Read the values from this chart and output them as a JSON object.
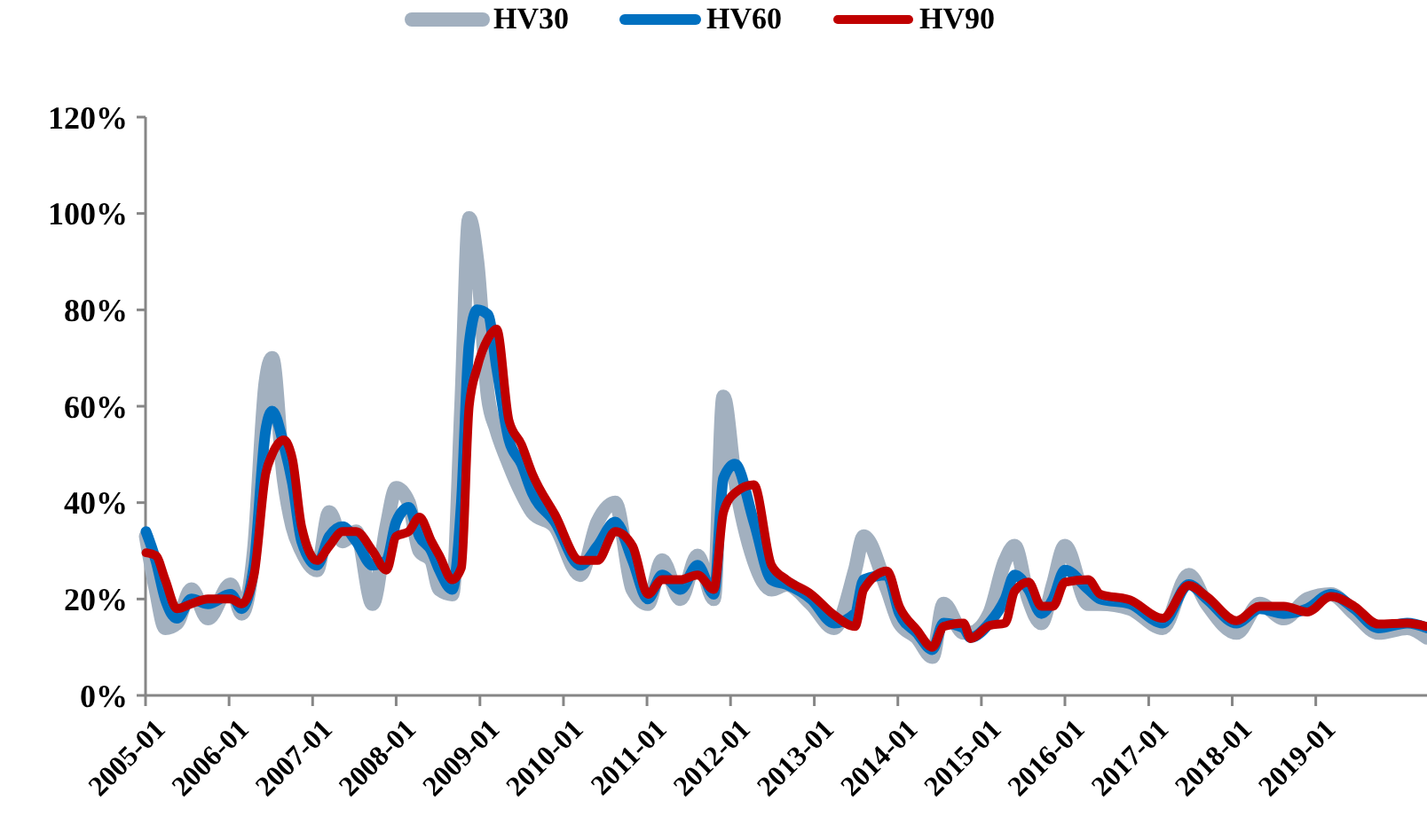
{
  "chart_data": {
    "type": "line",
    "x": [
      "2005-01-03",
      "2005-02-15",
      "2005-03-28",
      "2005-05-18",
      "2005-07-20",
      "2005-10-01",
      "2006-01-08",
      "2006-02-25",
      "2006-04-20",
      "2006-06-10",
      "2006-07-08",
      "2006-08-28",
      "2006-10-05",
      "2006-11-14",
      "2007-01-20",
      "2007-03-15",
      "2007-05-12",
      "2007-07-10",
      "2007-09-20",
      "2007-11-20",
      "2008-01-01",
      "2008-02-25",
      "2008-04-12",
      "2008-06-03",
      "2008-07-08",
      "2008-09-02",
      "2008-10-12",
      "2008-11-15",
      "2008-12-20",
      "2009-02-05",
      "2009-03-15",
      "2009-05-08",
      "2009-07-02",
      "2009-08-18",
      "2009-11-25",
      "2010-03-15",
      "2010-05-30",
      "2010-08-15",
      "2010-10-30",
      "2011-01-05",
      "2011-03-08",
      "2011-05-27",
      "2011-08-10",
      "2011-10-20",
      "2011-12-01",
      "2012-01-20",
      "2012-04-12",
      "2012-06-28",
      "2012-09-02",
      "2012-12-18",
      "2013-03-28",
      "2013-06-28",
      "2013-08-05",
      "2013-11-15",
      "2014-01-08",
      "2014-03-25",
      "2014-06-01",
      "2014-07-20",
      "2014-10-15",
      "2014-11-15",
      "2015-02-05",
      "2015-04-15",
      "2015-05-26",
      "2015-07-26",
      "2015-09-20",
      "2015-11-10",
      "2016-01-01",
      "2016-04-12",
      "2016-06-03",
      "2016-10-12",
      "2017-03-03",
      "2017-06-25",
      "2017-09-12",
      "2018-01-20",
      "2018-05-01",
      "2018-08-15",
      "2018-11-25",
      "2019-03-08",
      "2019-06-18",
      "2019-10-01",
      "2020-02-05",
      "2020-05-01"
    ],
    "series": [
      {
        "name": "HV30",
        "color": "#a2b0bf",
        "values": [
          33,
          22,
          14,
          15,
          22,
          16,
          23,
          17,
          30,
          65,
          70,
          45,
          35,
          30,
          26,
          38,
          32,
          34,
          19,
          35,
          43,
          40,
          30,
          28,
          22,
          21,
          60,
          99,
          90,
          62,
          55,
          48,
          42,
          38,
          35,
          25,
          36,
          40,
          22,
          19,
          28,
          20,
          29,
          20,
          62,
          45,
          28,
          22,
          23,
          19,
          14,
          26,
          33,
          22,
          15,
          12,
          8,
          19,
          13,
          13,
          17,
          28,
          31,
          20,
          15,
          23,
          31,
          19,
          19,
          18,
          14,
          25,
          19,
          13,
          19,
          16,
          20,
          21,
          17,
          13,
          14,
          12
        ]
      },
      {
        "name": "HV60",
        "color": "#0070c0",
        "values": [
          34,
          28,
          20,
          16,
          20,
          19,
          21,
          18,
          27,
          55,
          59,
          52,
          44,
          32,
          27,
          33,
          35,
          32,
          27,
          28,
          36,
          39,
          33,
          30,
          26,
          22,
          40,
          73,
          80,
          79,
          68,
          53,
          48,
          42,
          36,
          27,
          31,
          36,
          28,
          20,
          25,
          22,
          27,
          21,
          45,
          48,
          36,
          24,
          23,
          20,
          15,
          17,
          24,
          25,
          17,
          13,
          9.5,
          15,
          14,
          12,
          15,
          20,
          25,
          22,
          17,
          20,
          26,
          22,
          20,
          19,
          15,
          23,
          20,
          15,
          18,
          17,
          18,
          21,
          18,
          14,
          15,
          14
        ]
      },
      {
        "name": "HV90",
        "color": "#c00000",
        "values": [
          29.6,
          29,
          24,
          18,
          19,
          20,
          20,
          19,
          25,
          46,
          50,
          53,
          49,
          35,
          28,
          31,
          34,
          34,
          30,
          26,
          33,
          34,
          37,
          32,
          29,
          24,
          26.5,
          60,
          68,
          74,
          76,
          57,
          52,
          46,
          37.5,
          28,
          28,
          34,
          31,
          21,
          24,
          24,
          25,
          22,
          38,
          42,
          43.7,
          27,
          24,
          21,
          16.7,
          14.3,
          22,
          25.8,
          18.4,
          13.6,
          10,
          14.3,
          15,
          11.8,
          14.5,
          15,
          21.6,
          23.5,
          18.5,
          18.5,
          23.5,
          24,
          21,
          19.8,
          16,
          22.8,
          20.5,
          15.5,
          18.5,
          18.5,
          17.3,
          20.5,
          18.5,
          14.8,
          15,
          14.3
        ]
      }
    ],
    "xlim": [
      "2005-01-01",
      "2020-05-01"
    ],
    "xticks": [
      "2005-01",
      "2006-01",
      "2007-01",
      "2008-01",
      "2009-01",
      "2010-01",
      "2011-01",
      "2012-01",
      "2013-01",
      "2014-01",
      "2015-01",
      "2016-01",
      "2017-01",
      "2018-01",
      "2019-01"
    ],
    "ylim": [
      0,
      120
    ],
    "yticks": [
      {
        "value": 0,
        "label": "0%"
      },
      {
        "value": 20,
        "label": "20%"
      },
      {
        "value": 40,
        "label": "40%"
      },
      {
        "value": 60,
        "label": "60%"
      },
      {
        "value": 80,
        "label": "80%"
      },
      {
        "value": 100,
        "label": "100%"
      },
      {
        "value": 120,
        "label": "120%"
      }
    ],
    "grid": false,
    "legend": "top",
    "line_style": "solid"
  }
}
